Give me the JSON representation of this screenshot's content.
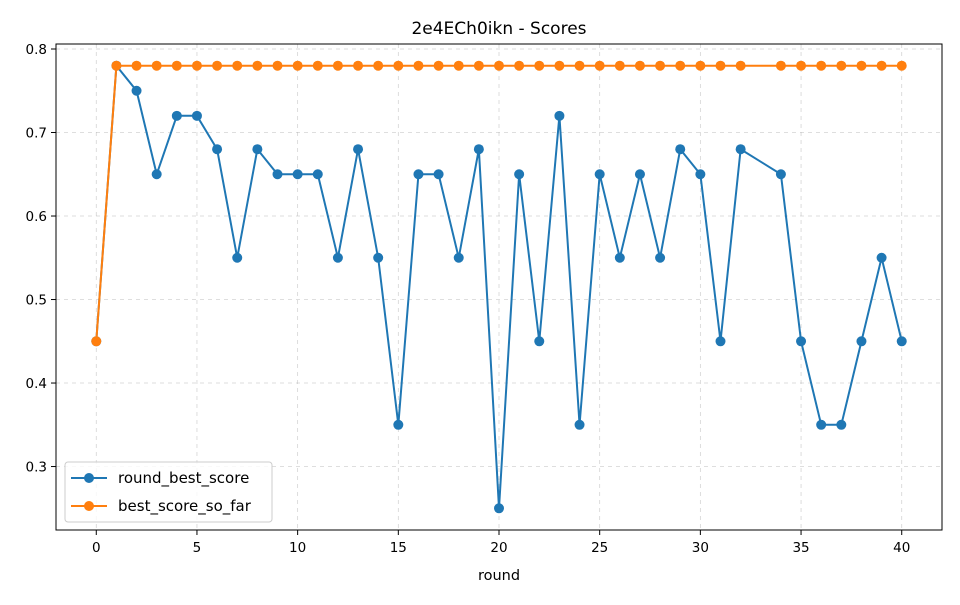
{
  "chart_data": {
    "type": "line",
    "title": "2e4ECh0ikn - Scores",
    "xlabel": "round",
    "ylabel": "",
    "xlim": [
      -2,
      42
    ],
    "ylim": [
      0.224,
      0.806
    ],
    "xticks": [
      0,
      5,
      10,
      15,
      20,
      25,
      30,
      35,
      40
    ],
    "yticks": [
      0.3,
      0.4,
      0.5,
      0.6,
      0.7,
      0.8
    ],
    "grid": true,
    "legend_position": "lower-left",
    "series": [
      {
        "name": "round_best_score",
        "color": "#1f77b4",
        "marker": "circle",
        "points": [
          [
            0,
            0.45
          ],
          [
            1,
            0.78
          ],
          [
            2,
            0.75
          ],
          [
            3,
            0.65
          ],
          [
            4,
            0.72
          ],
          [
            5,
            0.72
          ],
          [
            6,
            0.68
          ],
          [
            7,
            0.55
          ],
          [
            8,
            0.68
          ],
          [
            9,
            0.65
          ],
          [
            10,
            0.65
          ],
          [
            11,
            0.65
          ],
          [
            12,
            0.55
          ],
          [
            13,
            0.68
          ],
          [
            14,
            0.55
          ],
          [
            15,
            0.35
          ],
          [
            16,
            0.65
          ],
          [
            17,
            0.65
          ],
          [
            18,
            0.55
          ],
          [
            19,
            0.68
          ],
          [
            20,
            0.25
          ],
          [
            21,
            0.65
          ],
          [
            22,
            0.45
          ],
          [
            23,
            0.72
          ],
          [
            24,
            0.35
          ],
          [
            25,
            0.65
          ],
          [
            26,
            0.55
          ],
          [
            27,
            0.65
          ],
          [
            28,
            0.55
          ],
          [
            29,
            0.68
          ],
          [
            30,
            0.65
          ],
          [
            31,
            0.45
          ],
          [
            32,
            0.68
          ],
          [
            34,
            0.65
          ],
          [
            35,
            0.45
          ],
          [
            36,
            0.35
          ],
          [
            37,
            0.35
          ],
          [
            38,
            0.45
          ],
          [
            39,
            0.55
          ],
          [
            40,
            0.45
          ]
        ]
      },
      {
        "name": "best_score_so_far",
        "color": "#ff7f0e",
        "marker": "circle",
        "points": [
          [
            0,
            0.45
          ],
          [
            1,
            0.78
          ],
          [
            2,
            0.78
          ],
          [
            3,
            0.78
          ],
          [
            4,
            0.78
          ],
          [
            5,
            0.78
          ],
          [
            6,
            0.78
          ],
          [
            7,
            0.78
          ],
          [
            8,
            0.78
          ],
          [
            9,
            0.78
          ],
          [
            10,
            0.78
          ],
          [
            11,
            0.78
          ],
          [
            12,
            0.78
          ],
          [
            13,
            0.78
          ],
          [
            14,
            0.78
          ],
          [
            15,
            0.78
          ],
          [
            16,
            0.78
          ],
          [
            17,
            0.78
          ],
          [
            18,
            0.78
          ],
          [
            19,
            0.78
          ],
          [
            20,
            0.78
          ],
          [
            21,
            0.78
          ],
          [
            22,
            0.78
          ],
          [
            23,
            0.78
          ],
          [
            24,
            0.78
          ],
          [
            25,
            0.78
          ],
          [
            26,
            0.78
          ],
          [
            27,
            0.78
          ],
          [
            28,
            0.78
          ],
          [
            29,
            0.78
          ],
          [
            30,
            0.78
          ],
          [
            31,
            0.78
          ],
          [
            32,
            0.78
          ],
          [
            34,
            0.78
          ],
          [
            35,
            0.78
          ],
          [
            36,
            0.78
          ],
          [
            37,
            0.78
          ],
          [
            38,
            0.78
          ],
          [
            39,
            0.78
          ],
          [
            40,
            0.78
          ]
        ]
      }
    ]
  }
}
